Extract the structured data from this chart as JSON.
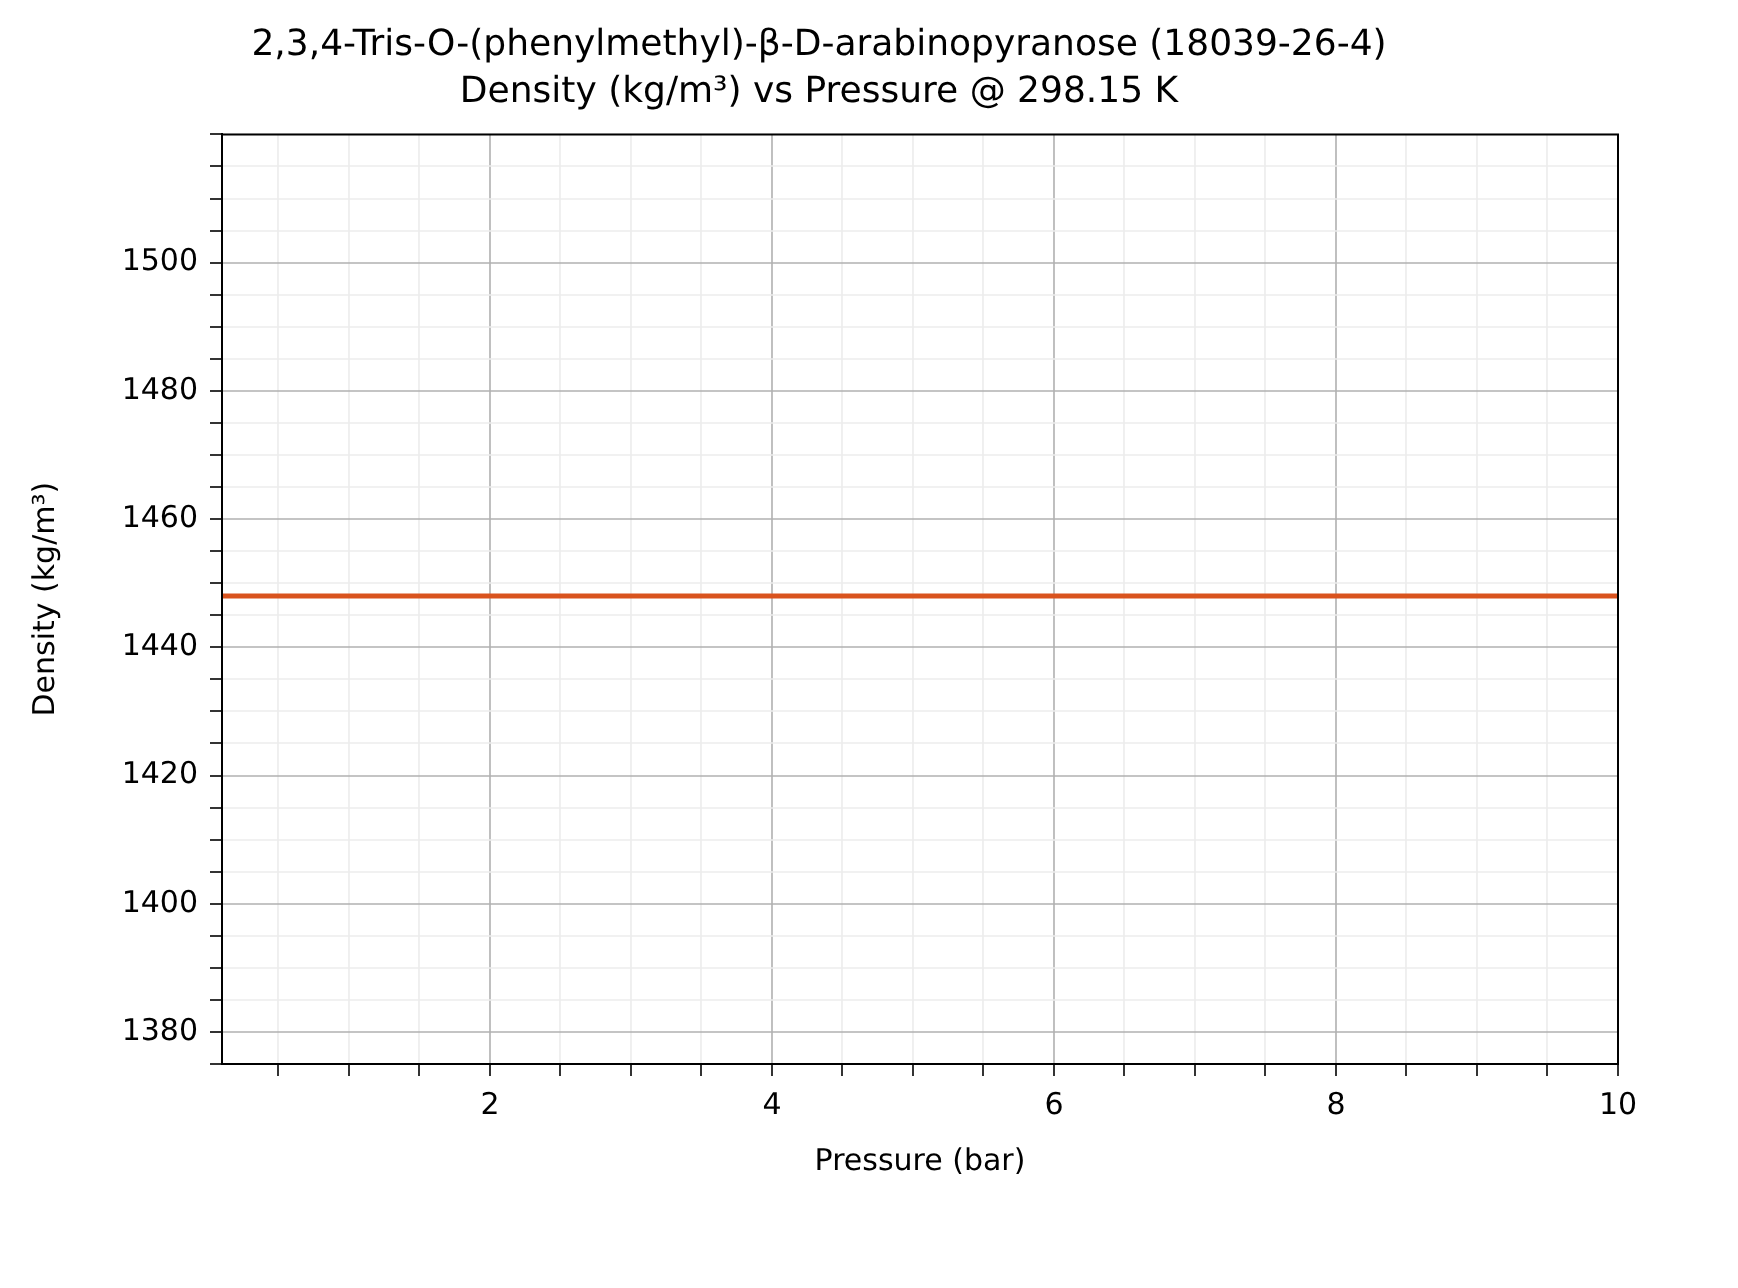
{
  "chart_data": {
    "type": "line",
    "title": "2,3,4-Tris-O-(phenylmethyl)-β-D-arabinopyranose (18039-26-4)",
    "subtitle": "Density (kg/m³) vs Pressure @ 298.15 K",
    "xlabel": "Pressure (bar)",
    "ylabel": "Density (kg/m³)",
    "x": [
      0.1,
      10
    ],
    "series": [
      {
        "color": "#d9531e",
        "values": [
          1448,
          1448
        ]
      }
    ],
    "xlim": [
      0.1,
      10
    ],
    "ylim": [
      1375,
      1520
    ],
    "xticks": [
      {
        "value": 0.5,
        "label": null
      },
      {
        "value": 1,
        "label": null
      },
      {
        "value": 1.5,
        "label": null
      },
      2,
      {
        "value": 2.5,
        "label": null
      },
      {
        "value": 3,
        "label": null
      },
      {
        "value": 3.5,
        "label": null
      },
      4,
      {
        "value": 4.5,
        "label": null
      },
      {
        "value": 5,
        "label": null
      },
      {
        "value": 5.5,
        "label": null
      },
      6,
      {
        "value": 6.5,
        "label": null
      },
      {
        "value": 7,
        "label": null
      },
      {
        "value": 7.5,
        "label": null
      },
      8,
      {
        "value": 8.5,
        "label": null
      },
      {
        "value": 9,
        "label": null
      },
      {
        "value": 9.5,
        "label": null
      },
      10
    ],
    "yticks": [
      {
        "value": 1375,
        "label": null
      },
      1380,
      {
        "value": 1385,
        "label": null
      },
      {
        "value": 1390,
        "label": null
      },
      {
        "value": 1395,
        "label": null
      },
      1400,
      {
        "value": 1405,
        "label": null
      },
      {
        "value": 1410,
        "label": null
      },
      {
        "value": 1415,
        "label": null
      },
      1420,
      {
        "value": 1425,
        "label": null
      },
      {
        "value": 1430,
        "label": null
      },
      {
        "value": 1435,
        "label": null
      },
      1440,
      {
        "value": 1445,
        "label": null
      },
      {
        "value": 1450,
        "label": null
      },
      {
        "value": 1455,
        "label": null
      },
      1460,
      {
        "value": 1465,
        "label": null
      },
      {
        "value": 1470,
        "label": null
      },
      {
        "value": 1475,
        "label": null
      },
      1480,
      {
        "value": 1485,
        "label": null
      },
      {
        "value": 1490,
        "label": null
      },
      {
        "value": 1495,
        "label": null
      },
      1500,
      {
        "value": 1505,
        "label": null
      },
      {
        "value": 1510,
        "label": null
      },
      {
        "value": 1515,
        "label": null
      },
      {
        "value": 1520,
        "label": null
      }
    ],
    "grid": true,
    "legend": false,
    "marker": "none",
    "line_style": "solid"
  }
}
